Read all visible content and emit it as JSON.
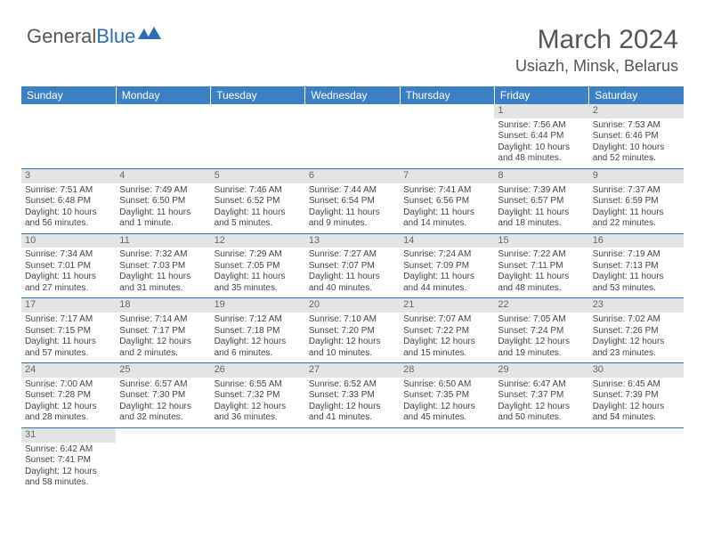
{
  "logo": {
    "text1": "General",
    "text2": "Blue"
  },
  "title": "March 2024",
  "location": "Usiazh, Minsk, Belarus",
  "colors": {
    "header_bg": "#3b7fc4",
    "header_text": "#ffffff",
    "daynum_bg": "#e4e4e4",
    "row_border": "#2a6db5",
    "text": "#444444"
  },
  "day_headers": [
    "Sunday",
    "Monday",
    "Tuesday",
    "Wednesday",
    "Thursday",
    "Friday",
    "Saturday"
  ],
  "weeks": [
    [
      {
        "empty": true
      },
      {
        "empty": true
      },
      {
        "empty": true
      },
      {
        "empty": true
      },
      {
        "empty": true
      },
      {
        "n": "1",
        "sr": "7:56 AM",
        "ss": "6:44 PM",
        "dl1": "10 hours",
        "dl2": "and 48 minutes."
      },
      {
        "n": "2",
        "sr": "7:53 AM",
        "ss": "6:46 PM",
        "dl1": "10 hours",
        "dl2": "and 52 minutes."
      }
    ],
    [
      {
        "n": "3",
        "sr": "7:51 AM",
        "ss": "6:48 PM",
        "dl1": "10 hours",
        "dl2": "and 56 minutes."
      },
      {
        "n": "4",
        "sr": "7:49 AM",
        "ss": "6:50 PM",
        "dl1": "11 hours",
        "dl2": "and 1 minute."
      },
      {
        "n": "5",
        "sr": "7:46 AM",
        "ss": "6:52 PM",
        "dl1": "11 hours",
        "dl2": "and 5 minutes."
      },
      {
        "n": "6",
        "sr": "7:44 AM",
        "ss": "6:54 PM",
        "dl1": "11 hours",
        "dl2": "and 9 minutes."
      },
      {
        "n": "7",
        "sr": "7:41 AM",
        "ss": "6:56 PM",
        "dl1": "11 hours",
        "dl2": "and 14 minutes."
      },
      {
        "n": "8",
        "sr": "7:39 AM",
        "ss": "6:57 PM",
        "dl1": "11 hours",
        "dl2": "and 18 minutes."
      },
      {
        "n": "9",
        "sr": "7:37 AM",
        "ss": "6:59 PM",
        "dl1": "11 hours",
        "dl2": "and 22 minutes."
      }
    ],
    [
      {
        "n": "10",
        "sr": "7:34 AM",
        "ss": "7:01 PM",
        "dl1": "11 hours",
        "dl2": "and 27 minutes."
      },
      {
        "n": "11",
        "sr": "7:32 AM",
        "ss": "7:03 PM",
        "dl1": "11 hours",
        "dl2": "and 31 minutes."
      },
      {
        "n": "12",
        "sr": "7:29 AM",
        "ss": "7:05 PM",
        "dl1": "11 hours",
        "dl2": "and 35 minutes."
      },
      {
        "n": "13",
        "sr": "7:27 AM",
        "ss": "7:07 PM",
        "dl1": "11 hours",
        "dl2": "and 40 minutes."
      },
      {
        "n": "14",
        "sr": "7:24 AM",
        "ss": "7:09 PM",
        "dl1": "11 hours",
        "dl2": "and 44 minutes."
      },
      {
        "n": "15",
        "sr": "7:22 AM",
        "ss": "7:11 PM",
        "dl1": "11 hours",
        "dl2": "and 48 minutes."
      },
      {
        "n": "16",
        "sr": "7:19 AM",
        "ss": "7:13 PM",
        "dl1": "11 hours",
        "dl2": "and 53 minutes."
      }
    ],
    [
      {
        "n": "17",
        "sr": "7:17 AM",
        "ss": "7:15 PM",
        "dl1": "11 hours",
        "dl2": "and 57 minutes."
      },
      {
        "n": "18",
        "sr": "7:14 AM",
        "ss": "7:17 PM",
        "dl1": "12 hours",
        "dl2": "and 2 minutes."
      },
      {
        "n": "19",
        "sr": "7:12 AM",
        "ss": "7:18 PM",
        "dl1": "12 hours",
        "dl2": "and 6 minutes."
      },
      {
        "n": "20",
        "sr": "7:10 AM",
        "ss": "7:20 PM",
        "dl1": "12 hours",
        "dl2": "and 10 minutes."
      },
      {
        "n": "21",
        "sr": "7:07 AM",
        "ss": "7:22 PM",
        "dl1": "12 hours",
        "dl2": "and 15 minutes."
      },
      {
        "n": "22",
        "sr": "7:05 AM",
        "ss": "7:24 PM",
        "dl1": "12 hours",
        "dl2": "and 19 minutes."
      },
      {
        "n": "23",
        "sr": "7:02 AM",
        "ss": "7:26 PM",
        "dl1": "12 hours",
        "dl2": "and 23 minutes."
      }
    ],
    [
      {
        "n": "24",
        "sr": "7:00 AM",
        "ss": "7:28 PM",
        "dl1": "12 hours",
        "dl2": "and 28 minutes."
      },
      {
        "n": "25",
        "sr": "6:57 AM",
        "ss": "7:30 PM",
        "dl1": "12 hours",
        "dl2": "and 32 minutes."
      },
      {
        "n": "26",
        "sr": "6:55 AM",
        "ss": "7:32 PM",
        "dl1": "12 hours",
        "dl2": "and 36 minutes."
      },
      {
        "n": "27",
        "sr": "6:52 AM",
        "ss": "7:33 PM",
        "dl1": "12 hours",
        "dl2": "and 41 minutes."
      },
      {
        "n": "28",
        "sr": "6:50 AM",
        "ss": "7:35 PM",
        "dl1": "12 hours",
        "dl2": "and 45 minutes."
      },
      {
        "n": "29",
        "sr": "6:47 AM",
        "ss": "7:37 PM",
        "dl1": "12 hours",
        "dl2": "and 50 minutes."
      },
      {
        "n": "30",
        "sr": "6:45 AM",
        "ss": "7:39 PM",
        "dl1": "12 hours",
        "dl2": "and 54 minutes."
      }
    ],
    [
      {
        "n": "31",
        "sr": "6:42 AM",
        "ss": "7:41 PM",
        "dl1": "12 hours",
        "dl2": "and 58 minutes."
      },
      {
        "empty": true
      },
      {
        "empty": true
      },
      {
        "empty": true
      },
      {
        "empty": true
      },
      {
        "empty": true
      },
      {
        "empty": true
      }
    ]
  ],
  "labels": {
    "sunrise": "Sunrise: ",
    "sunset": "Sunset: ",
    "daylight": "Daylight: "
  }
}
